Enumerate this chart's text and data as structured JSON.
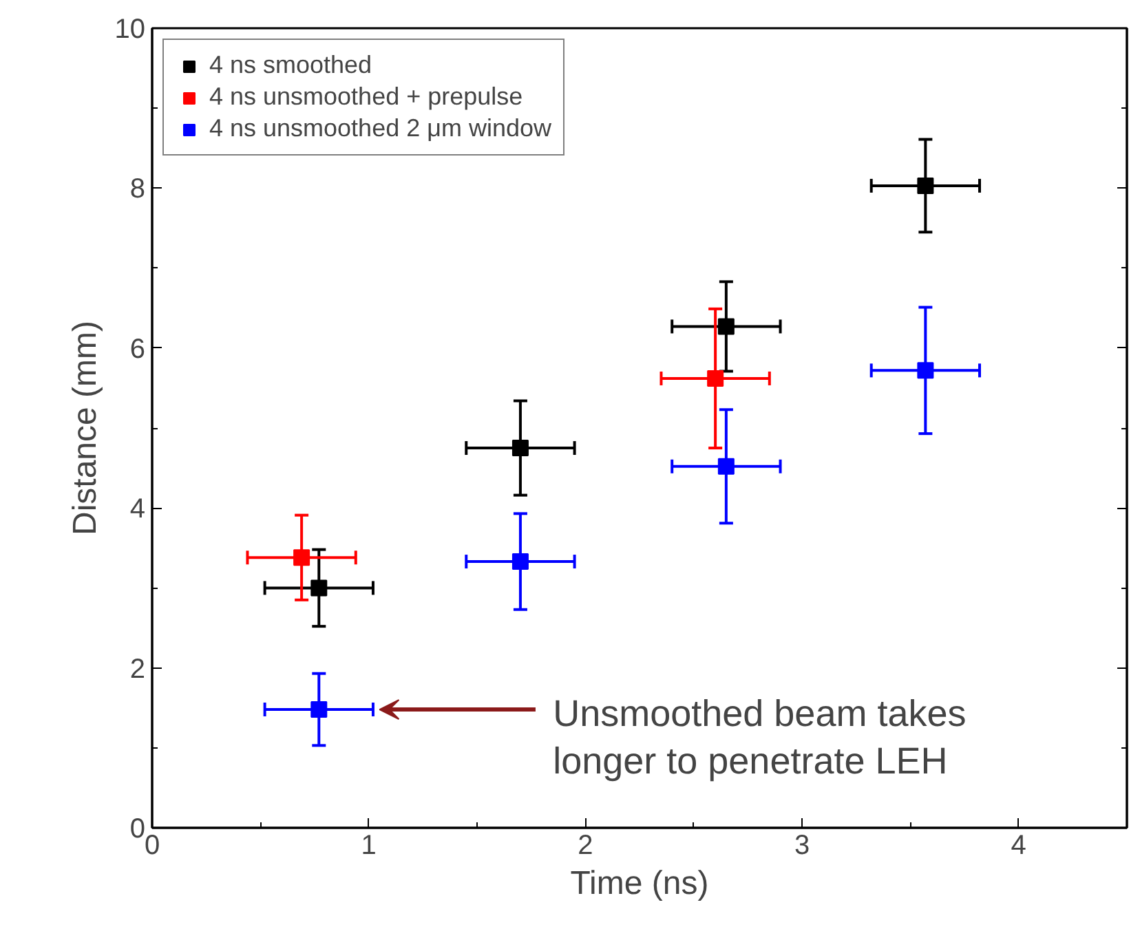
{
  "chart_data": {
    "type": "scatter",
    "xlabel": "Time (ns)",
    "ylabel": "Distance (mm)",
    "xlim": [
      0,
      4.5
    ],
    "ylim": [
      0,
      10
    ],
    "xticks": [
      0,
      1,
      2,
      3,
      4
    ],
    "yticks": [
      0,
      2,
      4,
      6,
      8,
      10
    ],
    "grid": false,
    "legend": "top left",
    "marker": "square",
    "series": [
      {
        "name": "4 ns smoothed",
        "color": "#000000",
        "x": [
          0.77,
          1.7,
          2.65,
          3.57
        ],
        "values": [
          3.0,
          4.75,
          6.27,
          8.03
        ],
        "errors": [
          0.48,
          0.59,
          0.56,
          0.58
        ],
        "xerrors": [
          0.25,
          0.25,
          0.25,
          0.25
        ]
      },
      {
        "name": "4 ns unsmoothed + prepulse",
        "color": "#ff0000",
        "x": [
          0.69,
          2.6
        ],
        "values": [
          3.38,
          5.62
        ],
        "errors": [
          0.53,
          0.87
        ],
        "xerrors": [
          0.25,
          0.25
        ]
      },
      {
        "name": "4 ns unsmoothed 2 μm window",
        "color": "#0000ff",
        "x": [
          0.77,
          1.7,
          2.65,
          3.57
        ],
        "values": [
          1.48,
          3.33,
          4.52,
          5.72
        ],
        "errors": [
          0.45,
          0.6,
          0.71,
          0.79
        ],
        "xerrors": [
          0.25,
          0.25,
          0.25,
          0.25
        ]
      }
    ],
    "annotations": [
      {
        "text": "Unsmoothed beam takes\nlonger to penetrate LEH",
        "x": 1.05,
        "y": 1.48
      }
    ]
  }
}
